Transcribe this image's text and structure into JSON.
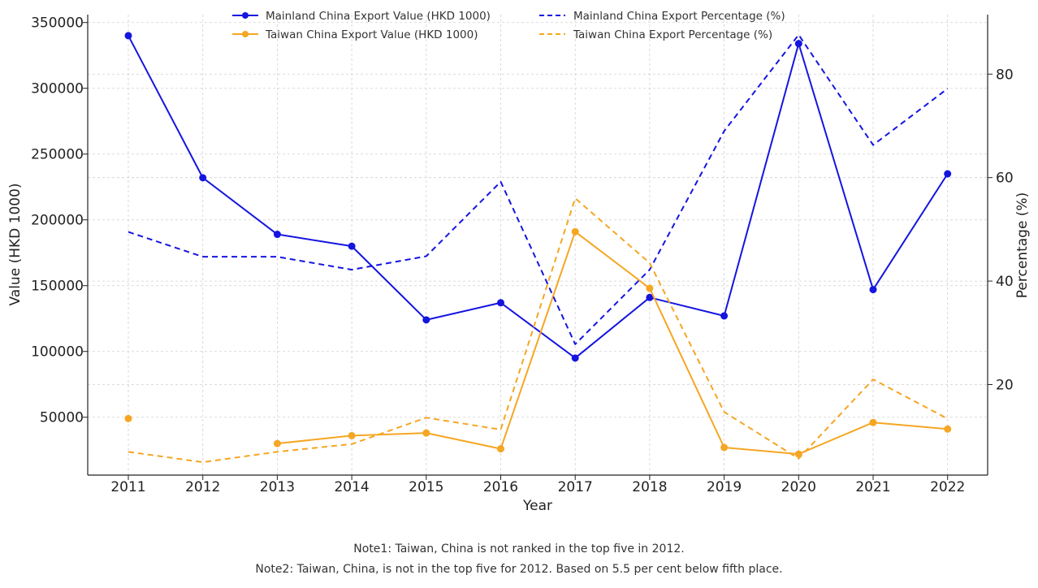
{
  "chart_data": {
    "type": "line",
    "title": "",
    "xlabel": "Year",
    "ylabel_left": "Value (HKD 1000)",
    "ylabel_right": "Percentage (%)",
    "x": [
      "2011",
      "2012",
      "2013",
      "2014",
      "2015",
      "2016",
      "2017",
      "2018",
      "2019",
      "2020",
      "2021",
      "2022"
    ],
    "left_axis": {
      "range": [
        6000,
        356000
      ],
      "ticks": [
        50000,
        100000,
        150000,
        200000,
        250000,
        300000,
        350000
      ]
    },
    "right_axis": {
      "range": [
        2.5,
        91.5
      ],
      "ticks": [
        20,
        40,
        60,
        80
      ]
    },
    "grid": true,
    "legend_position": "top-center",
    "series": [
      {
        "name": "Mainland China Export Value (HKD 1000)",
        "axis": "left",
        "style": "solid-marker",
        "color": "#1515e0",
        "values": [
          340000,
          232000,
          189000,
          180000,
          124000,
          137000,
          95000,
          141000,
          127000,
          334000,
          147000,
          235000
        ]
      },
      {
        "name": "Taiwan China Export Value (HKD 1000)",
        "axis": "left",
        "style": "solid-marker",
        "color": "#f5a623",
        "values": [
          49000,
          null,
          30000,
          36000,
          38000,
          26000,
          191000,
          148000,
          27000,
          22000,
          46000,
          41000
        ]
      },
      {
        "name": "Mainland China Export Percentage (%)",
        "axis": "right",
        "style": "dashed",
        "color": "#1515e0",
        "values": [
          49.5,
          44.7,
          44.7,
          42.2,
          44.8,
          59.2,
          27.8,
          42.2,
          69.0,
          87.6,
          66.3,
          77.2
        ]
      },
      {
        "name": "Taiwan China Export Percentage (%)",
        "axis": "right",
        "style": "dashed",
        "color": "#f5a623",
        "values": [
          7.0,
          5.0,
          7.0,
          8.5,
          13.6,
          11.3,
          56.0,
          43.5,
          14.7,
          5.7,
          21.0,
          13.4
        ]
      }
    ],
    "notes": [
      "Note1: Taiwan, China is not ranked in the top five in 2012.",
      "Note2: Taiwan, China, is not in the top five for 2012. Based on 5.5 per cent below fifth place."
    ]
  }
}
